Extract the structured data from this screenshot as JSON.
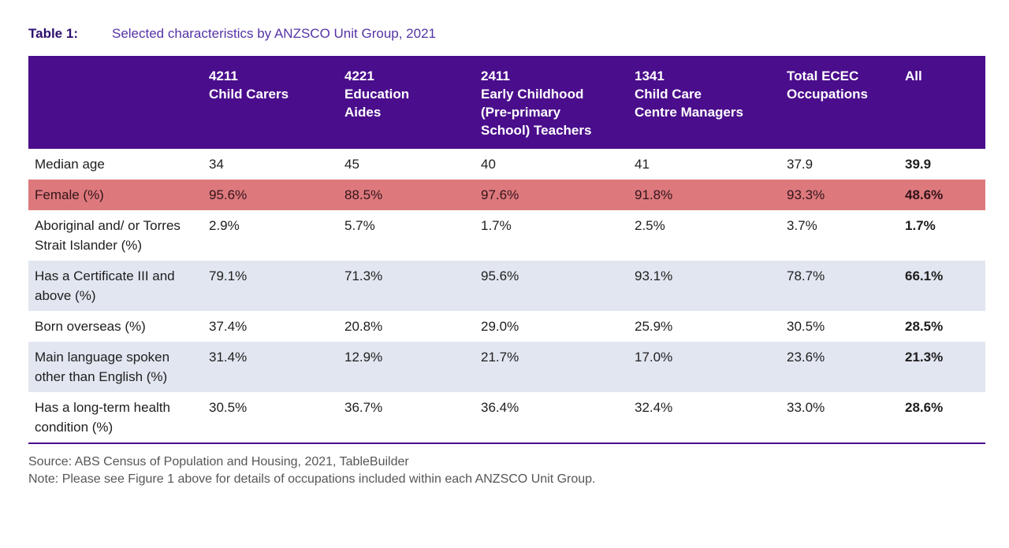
{
  "page": {
    "title_label": "Table 1:",
    "title_text": "Selected characteristics by ANZSCO Unit Group, 2021"
  },
  "colors": {
    "header_bg": "#4A0D8C",
    "header_text": "#FFFFFF",
    "title_label_color": "#2E0F6E",
    "title_text_color": "#5433A5",
    "highlight_bg": "#DD797D",
    "highlight_text": "#33141A",
    "shaded_bg": "#E2E6F0",
    "body_text": "#1E1E1E",
    "footer_text": "#565659",
    "border_color": "#4A0D8C"
  },
  "table": {
    "columns": [
      {
        "code": "",
        "name": ""
      },
      {
        "code": "4211",
        "name": "Child Carers"
      },
      {
        "code": "4221",
        "name": "Education\nAides"
      },
      {
        "code": "2411",
        "name": "Early Childhood\n(Pre-primary\nSchool) Teachers"
      },
      {
        "code": "1341",
        "name": "Child Care\nCentre Managers"
      },
      {
        "code": "",
        "name": "Total ECEC\nOccupations"
      },
      {
        "code": "",
        "name": "All"
      }
    ],
    "rows": [
      {
        "label": "Median age",
        "values": [
          "34",
          "45",
          "40",
          "41",
          "37.9",
          "39.9"
        ],
        "style": "plain"
      },
      {
        "label": "Female (%)",
        "values": [
          "95.6%",
          "88.5%",
          "97.6%",
          "91.8%",
          "93.3%",
          "48.6%"
        ],
        "style": "highlight"
      },
      {
        "label": "Aboriginal and/ or Torres Strait Islander (%)",
        "values": [
          "2.9%",
          "5.7%",
          "1.7%",
          "2.5%",
          "3.7%",
          "1.7%"
        ],
        "style": "plain"
      },
      {
        "label": "Has a Certificate III and above (%)",
        "values": [
          "79.1%",
          "71.3%",
          "95.6%",
          "93.1%",
          "78.7%",
          "66.1%"
        ],
        "style": "shaded"
      },
      {
        "label": "Born overseas (%)",
        "values": [
          "37.4%",
          "20.8%",
          "29.0%",
          "25.9%",
          "30.5%",
          "28.5%"
        ],
        "style": "plain"
      },
      {
        "label": "Main language spoken other than English (%)",
        "values": [
          "31.4%",
          "12.9%",
          "21.7%",
          "17.0%",
          "23.6%",
          "21.3%"
        ],
        "style": "shaded"
      },
      {
        "label": "Has a long-term health condition (%)",
        "values": [
          "30.5%",
          "36.7%",
          "36.4%",
          "32.4%",
          "33.0%",
          "28.6%"
        ],
        "style": "plain"
      }
    ]
  },
  "footer": {
    "source": "Source: ABS Census of Population and Housing, 2021, TableBuilder",
    "note": "Note: Please see Figure 1 above for details of occupations included within each ANZSCO Unit Group."
  }
}
